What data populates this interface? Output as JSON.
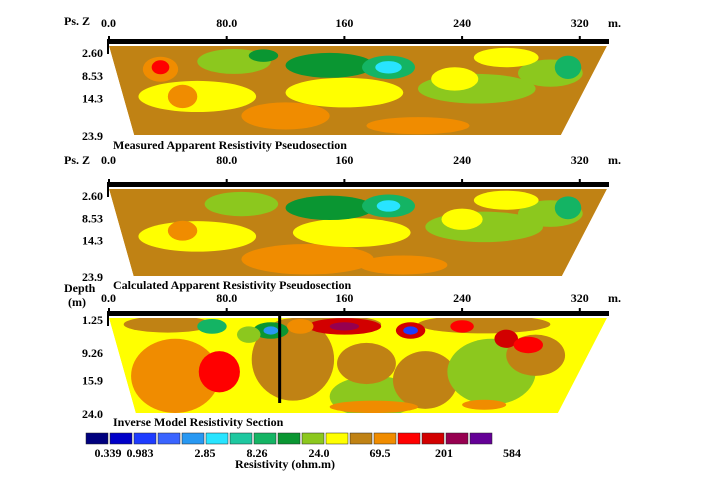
{
  "chart_data": [
    {
      "type": "heatmap",
      "title": "Measured Apparent Resistivity Pseudosection",
      "ylabel_lines": [
        "Ps. Z"
      ],
      "x_unit": "m.",
      "x_ticks": [
        "0.0",
        "80.0",
        "160",
        "240",
        "320"
      ],
      "x_tick_values": [
        0,
        80,
        160,
        240,
        320
      ],
      "xlim": [
        0,
        320
      ],
      "y_ticks": [
        "2.60",
        "8.53",
        "14.3",
        "23.9"
      ],
      "y_tick_values": [
        2.6,
        8.53,
        14.3,
        23.9
      ],
      "ylim": [
        0,
        23.9
      ],
      "shape": "trapezoid",
      "background_class": 11,
      "blobs": [
        {
          "x": 140,
          "y": 20,
          "rx": 45,
          "ry": 4.5,
          "c": 11
        },
        {
          "x": 120,
          "y": 19,
          "rx": 30,
          "ry": 3.5,
          "c": 12
        },
        {
          "x": 210,
          "y": 21.5,
          "rx": 35,
          "ry": 2.2,
          "c": 12
        },
        {
          "x": 60,
          "y": 14,
          "rx": 40,
          "ry": 4.0,
          "c": 10
        },
        {
          "x": 160,
          "y": 13,
          "rx": 40,
          "ry": 3.8,
          "c": 10
        },
        {
          "x": 250,
          "y": 12,
          "rx": 40,
          "ry": 3.8,
          "c": 9
        },
        {
          "x": 300,
          "y": 8,
          "rx": 22,
          "ry": 3.5,
          "c": 9
        },
        {
          "x": 85,
          "y": 5,
          "rx": 25,
          "ry": 3.2,
          "c": 9
        },
        {
          "x": 150,
          "y": 6,
          "rx": 30,
          "ry": 3.2,
          "c": 8
        },
        {
          "x": 190,
          "y": 6.5,
          "rx": 18,
          "ry": 3.0,
          "c": 7
        },
        {
          "x": 190,
          "y": 6.5,
          "rx": 9,
          "ry": 1.6,
          "c": 5
        },
        {
          "x": 105,
          "y": 3.5,
          "rx": 10,
          "ry": 1.6,
          "c": 8
        },
        {
          "x": 35,
          "y": 7,
          "rx": 12,
          "ry": 3.2,
          "c": 12
        },
        {
          "x": 35,
          "y": 6.5,
          "rx": 6,
          "ry": 1.8,
          "c": 13
        },
        {
          "x": 50,
          "y": 14,
          "rx": 10,
          "ry": 3.0,
          "c": 12
        },
        {
          "x": 312,
          "y": 6.5,
          "rx": 9,
          "ry": 3.0,
          "c": 7
        },
        {
          "x": 235,
          "y": 9.5,
          "rx": 16,
          "ry": 3.0,
          "c": 10
        },
        {
          "x": 270,
          "y": 4,
          "rx": 22,
          "ry": 2.5,
          "c": 10
        }
      ]
    },
    {
      "type": "heatmap",
      "title": "Calculated Apparent Resistivity Pseudosection",
      "ylabel_lines": [
        "Ps. Z"
      ],
      "x_unit": "m.",
      "x_ticks": [
        "0.0",
        "80.0",
        "160",
        "240",
        "320"
      ],
      "x_tick_values": [
        0,
        80,
        160,
        240,
        320
      ],
      "xlim": [
        0,
        320
      ],
      "y_ticks": [
        "2.60",
        "8.53",
        "14.3",
        "23.9"
      ],
      "y_tick_values": [
        2.6,
        8.53,
        14.3,
        23.9
      ],
      "ylim": [
        0,
        23.9
      ],
      "shape": "trapezoid",
      "background_class": 11,
      "blobs": [
        {
          "x": 135,
          "y": 19.5,
          "rx": 45,
          "ry": 4.0,
          "c": 12
        },
        {
          "x": 200,
          "y": 21,
          "rx": 30,
          "ry": 2.5,
          "c": 12
        },
        {
          "x": 60,
          "y": 13.5,
          "rx": 40,
          "ry": 4.0,
          "c": 10
        },
        {
          "x": 165,
          "y": 12.5,
          "rx": 40,
          "ry": 3.8,
          "c": 10
        },
        {
          "x": 255,
          "y": 11,
          "rx": 40,
          "ry": 4.0,
          "c": 9
        },
        {
          "x": 300,
          "y": 7.5,
          "rx": 22,
          "ry": 3.5,
          "c": 9
        },
        {
          "x": 90,
          "y": 5,
          "rx": 25,
          "ry": 3.2,
          "c": 9
        },
        {
          "x": 150,
          "y": 6,
          "rx": 30,
          "ry": 3.2,
          "c": 8
        },
        {
          "x": 190,
          "y": 5.5,
          "rx": 18,
          "ry": 3.0,
          "c": 7
        },
        {
          "x": 190,
          "y": 5.5,
          "rx": 8,
          "ry": 1.5,
          "c": 5
        },
        {
          "x": 50,
          "y": 12,
          "rx": 10,
          "ry": 2.6,
          "c": 12
        },
        {
          "x": 312,
          "y": 6,
          "rx": 9,
          "ry": 3.0,
          "c": 7
        },
        {
          "x": 240,
          "y": 9,
          "rx": 14,
          "ry": 2.8,
          "c": 10
        },
        {
          "x": 270,
          "y": 4,
          "rx": 22,
          "ry": 2.5,
          "c": 10
        }
      ]
    },
    {
      "type": "heatmap",
      "title": "Inverse Model Resistivity Section",
      "ylabel_lines": [
        "Depth",
        "(m)"
      ],
      "x_unit": "m.",
      "x_ticks": [
        "0.0",
        "80.0",
        "160",
        "240",
        "320"
      ],
      "x_tick_values": [
        0,
        80,
        160,
        240,
        320
      ],
      "xlim": [
        0,
        320
      ],
      "y_ticks": [
        "1.25",
        "9.26",
        "15.9",
        "24.0"
      ],
      "y_tick_values": [
        1.25,
        9.26,
        15.9,
        24.0
      ],
      "ylim": [
        0,
        24.0
      ],
      "shape": "trapezoid",
      "background_class": 10,
      "blobs": [
        {
          "x": 45,
          "y": 15,
          "rx": 30,
          "ry": 9,
          "c": 12
        },
        {
          "x": 75,
          "y": 14,
          "rx": 14,
          "ry": 5,
          "c": 13
        },
        {
          "x": 125,
          "y": 11,
          "rx": 28,
          "ry": 10,
          "c": 11
        },
        {
          "x": 180,
          "y": 20,
          "rx": 30,
          "ry": 5,
          "c": 9
        },
        {
          "x": 175,
          "y": 12,
          "rx": 20,
          "ry": 5,
          "c": 11
        },
        {
          "x": 215,
          "y": 16,
          "rx": 22,
          "ry": 7,
          "c": 11
        },
        {
          "x": 260,
          "y": 14,
          "rx": 30,
          "ry": 8,
          "c": 9
        },
        {
          "x": 290,
          "y": 10,
          "rx": 20,
          "ry": 5,
          "c": 11
        },
        {
          "x": 40,
          "y": 2.5,
          "rx": 30,
          "ry": 2.0,
          "c": 11
        },
        {
          "x": 150,
          "y": 2.5,
          "rx": 35,
          "ry": 2.2,
          "c": 11
        },
        {
          "x": 255,
          "y": 2.5,
          "rx": 45,
          "ry": 2.2,
          "c": 11
        },
        {
          "x": 160,
          "y": 3,
          "rx": 25,
          "ry": 2.0,
          "c": 14
        },
        {
          "x": 160,
          "y": 3,
          "rx": 10,
          "ry": 1.0,
          "c": 15
        },
        {
          "x": 110,
          "y": 4,
          "rx": 12,
          "ry": 2.0,
          "c": 8
        },
        {
          "x": 110,
          "y": 4,
          "rx": 5,
          "ry": 1.0,
          "c": 4
        },
        {
          "x": 205,
          "y": 4,
          "rx": 10,
          "ry": 2.0,
          "c": 14
        },
        {
          "x": 205,
          "y": 4,
          "rx": 5,
          "ry": 1.0,
          "c": 2
        },
        {
          "x": 270,
          "y": 6,
          "rx": 8,
          "ry": 2.2,
          "c": 14
        },
        {
          "x": 285,
          "y": 7.5,
          "rx": 10,
          "ry": 2.0,
          "c": 13
        },
        {
          "x": 95,
          "y": 5,
          "rx": 8,
          "ry": 2.0,
          "c": 9
        },
        {
          "x": 130,
          "y": 3,
          "rx": 9,
          "ry": 1.8,
          "c": 12
        },
        {
          "x": 240,
          "y": 3,
          "rx": 8,
          "ry": 1.5,
          "c": 13
        },
        {
          "x": 180,
          "y": 22.5,
          "rx": 30,
          "ry": 1.5,
          "c": 12
        },
        {
          "x": 255,
          "y": 22,
          "rx": 15,
          "ry": 1.2,
          "c": 12
        },
        {
          "x": 70,
          "y": 3,
          "rx": 10,
          "ry": 1.8,
          "c": 7
        }
      ],
      "marker_x": 116
    }
  ],
  "legend": {
    "colors": [
      "#00007e",
      "#0000c8",
      "#1e3cff",
      "#3a64ff",
      "#2898f2",
      "#28e4ff",
      "#1ec8a0",
      "#14b464",
      "#0a9632",
      "#8cc81e",
      "#ffff00",
      "#c08214",
      "#f08c00",
      "#ff0000",
      "#d20000",
      "#960050",
      "#640096"
    ],
    "labels": [
      "0.339",
      "0.983",
      "2.85",
      "8.26",
      "24.0",
      "69.5",
      "201",
      "584"
    ],
    "title": "Resistivity (ohm.m)"
  },
  "frame_color": "#000000"
}
